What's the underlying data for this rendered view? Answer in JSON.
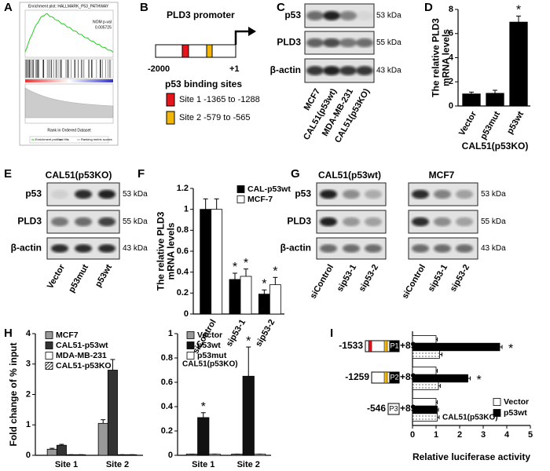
{
  "labels": [
    "A",
    "B",
    "C",
    "D",
    "E",
    "F",
    "G",
    "H",
    "I"
  ],
  "gsea": {
    "title": "Enrichment plot: HALLMARK_P53_PATHWAY",
    "nom_label": "NOM p-val",
    "nom_value": "0.005725",
    "x_label": "Rank in Ordered Dataset",
    "legend": [
      "Enrichment profile",
      "Hits",
      "Ranking metric scores"
    ]
  },
  "promoter": {
    "title": "PLD3 promoter",
    "start": "-2000",
    "end": "+1",
    "sites_title": "p53 binding sites",
    "sites": [
      {
        "label": "Site 1 -1365 to -1288",
        "color": "#e8141c"
      },
      {
        "label": "Site 2 -579 to -565",
        "color": "#f2b705"
      }
    ]
  },
  "blots": {
    "C": {
      "rows": [
        {
          "name": "p53",
          "size": "53 kDa"
        },
        {
          "name": "PLD3",
          "size": "55 kDa"
        },
        {
          "name": "β-actin",
          "size": "43 kDa"
        }
      ],
      "lanes": [
        "MCF7",
        "CAL51(p53wt)",
        "MDA-MB-231",
        "CAL51(p53KO)"
      ]
    },
    "E": {
      "title": "CAL51(p53KO)",
      "rows": [
        {
          "name": "p53",
          "size": "53 kDa"
        },
        {
          "name": "PLD3",
          "size": "55 kDa"
        },
        {
          "name": "β-actin",
          "size": "43 kDa"
        }
      ],
      "lanes": [
        "Vector",
        "p53mut",
        "p53wt"
      ]
    },
    "G": {
      "rows": [
        {
          "name": "p53",
          "size": "53 kDa"
        },
        {
          "name": "PLD3",
          "size": "55 kDa"
        },
        {
          "name": "β-actin",
          "size": "43 kDa"
        }
      ],
      "groups": [
        {
          "title": "CAL51(p53wt)",
          "lanes": [
            "siControl",
            "sip53-1",
            "sip53-2"
          ]
        },
        {
          "title": "MCF7",
          "lanes": [
            "siControl",
            "sip53-1",
            "sip53-2"
          ]
        }
      ]
    }
  },
  "chart_data": [
    {
      "type": "bar",
      "y_label": [
        "The relative PLD3",
        "mRNA levels"
      ],
      "x_label": "CAL51(p53KO)",
      "categories": [
        "Vector",
        "p53mut",
        "p53wt"
      ],
      "series": [
        {
          "name": null,
          "color": "#000000",
          "values": [
            1.0,
            1.05,
            6.95
          ],
          "errors": [
            0.15,
            0.25,
            0.5
          ],
          "marks": [
            null,
            null,
            "*"
          ]
        }
      ],
      "ylim": [
        0,
        8
      ],
      "yticks": [
        0,
        2,
        4,
        6,
        8
      ]
    },
    {
      "type": "bar",
      "y_label": [
        "The relative PLD3",
        "mRNA levels"
      ],
      "categories": [
        "siControl",
        "sip53-1",
        "sip53-2"
      ],
      "series": [
        {
          "name": "CAL-p53wt",
          "color": "#000000",
          "values": [
            1,
            0.33,
            0.19
          ],
          "errors": [
            0.1,
            0.06,
            0.04
          ],
          "marks": [
            null,
            "*",
            "*"
          ]
        },
        {
          "name": "MCF-7",
          "color": "#ffffff",
          "values": [
            1,
            0.36,
            0.28
          ],
          "errors": [
            0.1,
            0.07,
            0.07
          ],
          "marks": [
            null,
            "*",
            "*"
          ]
        }
      ],
      "ylim": [
        0,
        1.2
      ],
      "yticks": [
        0,
        0.2,
        0.4,
        0.6,
        0.8,
        1,
        1.2
      ],
      "legend": "upper right"
    },
    {
      "type": "bar",
      "y_label": [
        "Fold change of % input"
      ],
      "categories": [
        "Site 1",
        "Site 2"
      ],
      "series": [
        {
          "name": "MCF7",
          "color": "#999999",
          "values": [
            0.2,
            1.05
          ],
          "errors": [
            0.03,
            0.12
          ]
        },
        {
          "name": "CAL51-p53wt",
          "color": "#333333",
          "values": [
            0.33,
            2.8
          ],
          "errors": [
            0.03,
            0.35
          ]
        },
        {
          "name": "MDA-MB-231",
          "color": "#ffffff",
          "values": [
            0.02,
            0.02
          ],
          "errors": [
            0,
            0
          ]
        },
        {
          "name": "CAL51-p53KO",
          "color": "#ffffff",
          "pattern": "hatch",
          "values": [
            0.02,
            0.02
          ],
          "errors": [
            0,
            0
          ]
        }
      ],
      "ylim": [
        0,
        4
      ],
      "yticks": [
        0,
        1,
        2,
        3,
        4
      ],
      "legend": "upper left"
    },
    {
      "type": "bar",
      "note": "CAL51(p53KO)",
      "categories": [
        "Site 1",
        "Site 2"
      ],
      "series": [
        {
          "name": "Vector",
          "color": "#999999",
          "values": [
            0.01,
            0.01
          ],
          "errors": [
            0,
            0
          ]
        },
        {
          "name": "p53wt",
          "color": "#111111",
          "values": [
            0.31,
            0.65
          ],
          "errors": [
            0.04,
            0.24
          ],
          "marks": [
            "*",
            "*"
          ]
        },
        {
          "name": "p53mut",
          "color": "#ffffff",
          "values": [
            0.01,
            0.01
          ],
          "errors": [
            0,
            0
          ]
        }
      ],
      "ylim": [
        0,
        1
      ],
      "yticks": [
        0,
        0.2,
        0.4,
        0.6,
        0.8,
        1
      ],
      "legend": "upper left"
    },
    {
      "type": "hbar",
      "x_label": "Relative luciferase activity",
      "note": "CAL51(p53KO)",
      "categories": [
        "-1533",
        "-1259",
        "-546"
      ],
      "constructs": [
        {
          "promoter": "P1",
          "end": "+89"
        },
        {
          "promoter": "P2",
          "end": "+89"
        },
        {
          "promoter": "P3",
          "end": "+89"
        }
      ],
      "series": [
        {
          "name": "Vector",
          "color": "#ffffff",
          "values": [
            1,
            1,
            1
          ],
          "errors": [
            0.05,
            0.05,
            0.05
          ]
        },
        {
          "name": "p53wt",
          "color": "#000000",
          "values": [
            3.7,
            2.35,
            1.05
          ],
          "errors": [
            0.1,
            0.1,
            0.05
          ],
          "marks": [
            "*",
            "*",
            null
          ]
        },
        {
          "name": null,
          "color": "#ffffff",
          "pattern": "dots",
          "values": [
            1.15,
            1.1,
            1.05
          ],
          "errors": [
            0.1,
            0.08,
            0.08
          ]
        }
      ],
      "xlim": [
        0,
        5
      ],
      "xticks": [
        0,
        1,
        2,
        3,
        4,
        5
      ],
      "legend": "lower right"
    }
  ]
}
